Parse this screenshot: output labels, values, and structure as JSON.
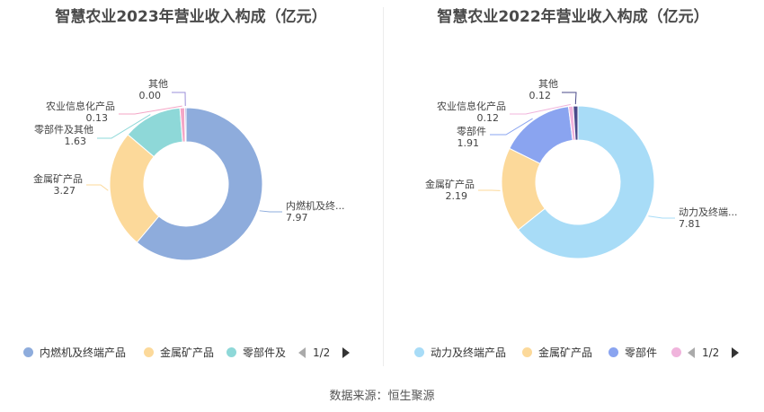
{
  "chart_data": [
    {
      "type": "pie",
      "title": "智慧农业2023年营业收入构成（亿元）",
      "categories": [
        "内燃机及终端产品",
        "金属矿产品",
        "零部件及其他",
        "农业信息化产品",
        "其他"
      ],
      "labels": [
        "内燃机及终...",
        "金属矿产品",
        "零部件及其他",
        "农业信息化产品",
        "其他"
      ],
      "values": [
        7.97,
        3.27,
        1.63,
        0.13,
        0.0
      ],
      "value_labels": [
        "7.97",
        "3.27",
        "1.63",
        "0.13",
        "0.00"
      ],
      "colors": [
        "#8eacdc",
        "#fcd99a",
        "#8ed8d8",
        "#f4a6c6",
        "#9b8fd8"
      ],
      "legend": {
        "items": [
          {
            "label": "内燃机及终端产品",
            "color": "#8eacdc"
          },
          {
            "label": "金属矿产品",
            "color": "#fcd99a"
          },
          {
            "label": "零部件及",
            "color": "#8ed8d8"
          }
        ],
        "page": "1/2",
        "placement": "bottom"
      }
    },
    {
      "type": "pie",
      "title": "智慧农业2022年营业收入构成（亿元）",
      "categories": [
        "动力及终端产品",
        "金属矿产品",
        "零部件",
        "农业信息化产品",
        "其他"
      ],
      "labels": [
        "动力及终端...",
        "金属矿产品",
        "零部件",
        "农业信息化产品",
        "其他"
      ],
      "values": [
        7.81,
        2.19,
        1.91,
        0.12,
        0.12
      ],
      "value_labels": [
        "7.81",
        "2.19",
        "1.91",
        "0.12",
        "0.12"
      ],
      "colors": [
        "#a8dcf7",
        "#fcd99a",
        "#8aa4f0",
        "#f0b4dc",
        "#4a4a8a"
      ],
      "legend": {
        "items": [
          {
            "label": "动力及终端产品",
            "color": "#a8dcf7"
          },
          {
            "label": "金属矿产品",
            "color": "#fcd99a"
          },
          {
            "label": "零部件",
            "color": "#8aa4f0"
          },
          {
            "label": "",
            "color": "#f0b4dc"
          }
        ],
        "page": "1/2",
        "placement": "bottom"
      }
    }
  ],
  "footer": {
    "source": "数据来源：恒生聚源"
  }
}
